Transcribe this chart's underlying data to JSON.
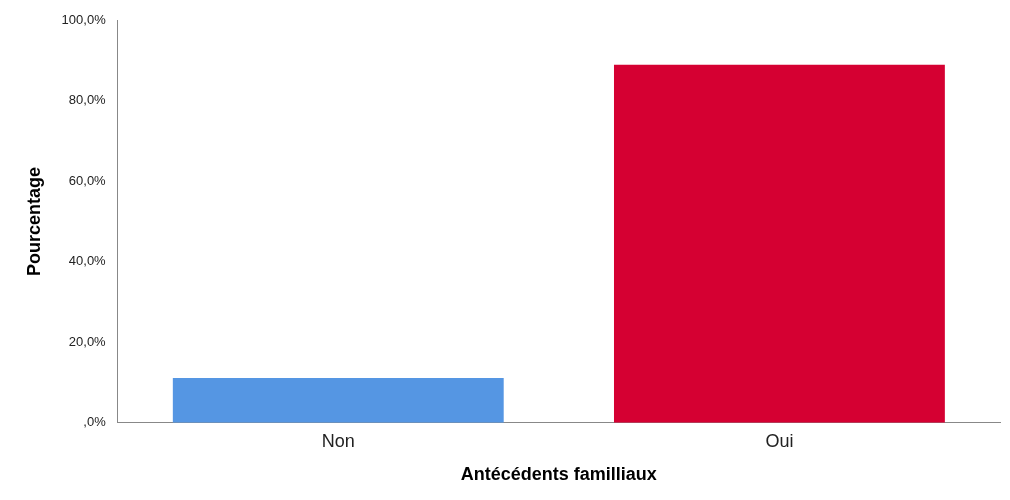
{
  "chart_data": {
    "type": "bar",
    "xlabel": "Antécédents familliaux",
    "ylabel": "Pourcentage",
    "categories": [
      "Non",
      "Oui"
    ],
    "values": [
      11.1,
      88.9
    ],
    "colors": [
      "#5596e3",
      "#d50032"
    ],
    "ylim": [
      0,
      100
    ],
    "yticks": [
      {
        "value": 0,
        "label": ",0%"
      },
      {
        "value": 20,
        "label": "20,0%"
      },
      {
        "value": 40,
        "label": "40,0%"
      },
      {
        "value": 60,
        "label": "60,0%"
      },
      {
        "value": 80,
        "label": "80,0%"
      },
      {
        "value": 100,
        "label": "100,0%"
      }
    ],
    "grid": false,
    "legend": false
  }
}
